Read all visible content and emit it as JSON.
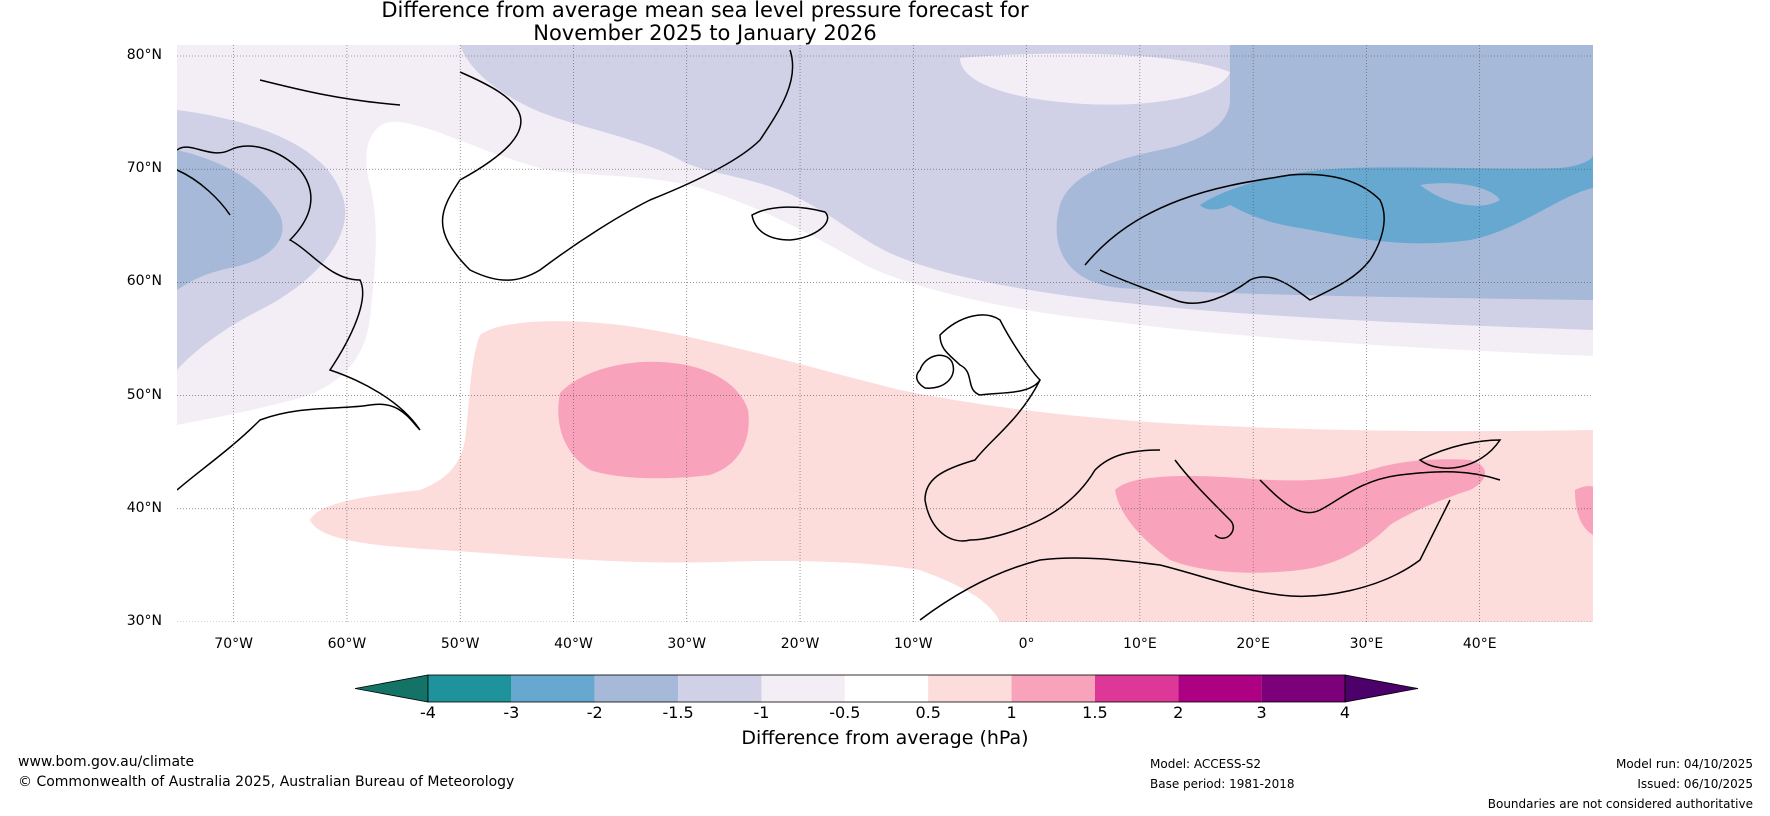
{
  "title": {
    "line1": "Difference from average mean sea level pressure forecast for",
    "line2": "November 2025 to January 2026"
  },
  "map": {
    "region": "North Atlantic and Europe",
    "lat_range": [
      30,
      80
    ],
    "lon_range": [
      -75,
      50
    ],
    "lat_labels": [
      "80°N",
      "70°N",
      "60°N",
      "50°N",
      "40°N",
      "30°N"
    ],
    "lon_labels": [
      "70°W",
      "60°W",
      "50°W",
      "40°W",
      "30°W",
      "20°W",
      "10°W",
      "0°",
      "10°E",
      "20°E",
      "30°E",
      "40°E"
    ]
  },
  "colorbar": {
    "title": "Difference from average (hPa)",
    "tick_labels": [
      "-4",
      "-3",
      "-2",
      "-1.5",
      "-1",
      "-0.5",
      "0.5",
      "1",
      "1.5",
      "2",
      "3",
      "4"
    ],
    "colors": [
      "#137367",
      "#1e939c",
      "#66a8cf",
      "#a6b9d9",
      "#d0d1e6",
      "#f3edf5",
      "#ffffff",
      "#fddcdc",
      "#f8a3bb",
      "#dd3797",
      "#ad0082",
      "#7b007a",
      "#4c006a"
    ]
  },
  "footer": {
    "website": "www.bom.gov.au/climate",
    "copyright": "© Commonwealth of Australia 2025, Australian Bureau of Meteorology",
    "model": "Model: ACCESS-S2",
    "base_period": "Base period: 1981-2018",
    "model_run": "Model run: 04/10/2025",
    "issued": "Issued: 06/10/2025",
    "disclaimer": "Boundaries are not considered authoritative"
  }
}
